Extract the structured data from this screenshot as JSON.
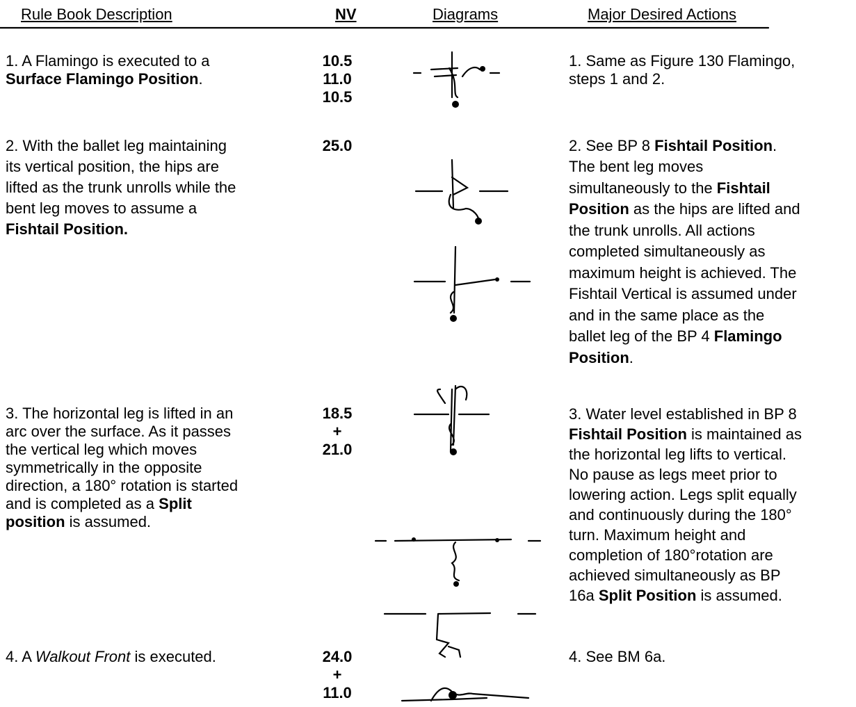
{
  "header": {
    "columns": [
      "Rule Book Description",
      "NV",
      "Diagrams",
      "Major Desired Actions"
    ]
  },
  "rows": [
    {
      "description": [
        [
          {
            "text": "1. A Flamingo is executed to a"
          }
        ],
        [
          {
            "text": "Surface Flamingo Position",
            "bold": true
          },
          {
            "text": "."
          }
        ]
      ],
      "nv": [
        "10.5",
        "11.0",
        "10.5"
      ],
      "actions": [
        [
          {
            "text": "1. Same as Figure 130 Flamingo,"
          }
        ],
        [
          {
            "text": "steps 1 and 2."
          }
        ]
      ]
    },
    {
      "description": [
        [
          {
            "text": "2. With the ballet leg maintaining"
          }
        ],
        [
          {
            "text": "its vertical position, the hips are"
          }
        ],
        [
          {
            "text": "lifted as the trunk unrolls while the"
          }
        ],
        [
          {
            "text": "bent leg moves to assume a"
          }
        ],
        [
          {
            "text": "Fishtail Position.",
            "bold": true
          }
        ]
      ],
      "nv": [
        "25.0"
      ],
      "actions": [
        [
          {
            "text": "2. See BP 8 "
          },
          {
            "text": "Fishtail Position",
            "bold": true
          },
          {
            "text": "."
          }
        ],
        [
          {
            "text": "The bent leg moves"
          }
        ],
        [
          {
            "text": "simultaneously to the "
          },
          {
            "text": "Fishtail",
            "bold": true
          }
        ],
        [
          {
            "text": "Position",
            "bold": true
          },
          {
            "text": " as the hips are lifted and"
          }
        ],
        [
          {
            "text": "the trunk unrolls. All actions"
          }
        ],
        [
          {
            "text": "completed simultaneously as"
          }
        ],
        [
          {
            "text": "maximum height is achieved. The"
          }
        ],
        [
          {
            "text": "Fishtail Vertical is assumed under"
          }
        ],
        [
          {
            "text": "and in the same place as the"
          }
        ],
        [
          {
            "text": "ballet leg of the BP 4 "
          },
          {
            "text": "Flamingo",
            "bold": true
          }
        ],
        [
          {
            "text": "Position",
            "bold": true
          },
          {
            "text": "."
          }
        ]
      ]
    },
    {
      "description": [
        [
          {
            "text": "3. The horizontal leg is lifted in an"
          }
        ],
        [
          {
            "text": "arc over the surface. As it passes"
          }
        ],
        [
          {
            "text": "the vertical leg which moves"
          }
        ],
        [
          {
            "text": "symmetrically in the opposite"
          }
        ],
        [
          {
            "text": "direction, a 180° rotation is started"
          }
        ],
        [
          {
            "text": "and is completed as a "
          },
          {
            "text": "Split",
            "bold": true
          }
        ],
        [
          {
            "text": "position",
            "bold": true
          },
          {
            "text": " is assumed."
          }
        ]
      ],
      "nv": [
        "18.5",
        "+",
        "21.0"
      ],
      "actions": [
        [
          {
            "text": "3. Water level established in BP 8"
          }
        ],
        [
          {
            "text": "Fishtail Position",
            "bold": true
          },
          {
            "text": " is maintained as"
          }
        ],
        [
          {
            "text": "the horizontal leg lifts to vertical."
          }
        ],
        [
          {
            "text": "No pause as legs meet prior to"
          }
        ],
        [
          {
            "text": "lowering action. Legs split equally"
          }
        ],
        [
          {
            "text": "and continuously during the 180°"
          }
        ],
        [
          {
            "text": "turn. Maximum height and"
          }
        ],
        [
          {
            "text": "completion of 180°rotation are"
          }
        ],
        [
          {
            "text": "achieved simultaneously as BP"
          }
        ],
        [
          {
            "text": "16a "
          },
          {
            "text": "Split Position",
            "bold": true
          },
          {
            "text": " is assumed."
          }
        ]
      ]
    },
    {
      "description": [
        [
          {
            "text": "4. A "
          },
          {
            "text": "Walkout Front",
            "italic": true
          },
          {
            "text": " is executed."
          }
        ]
      ],
      "nv": [
        "24.0",
        "+",
        "11.0"
      ],
      "actions": [
        [
          {
            "text": "4. See BM 6a."
          }
        ]
      ]
    }
  ]
}
